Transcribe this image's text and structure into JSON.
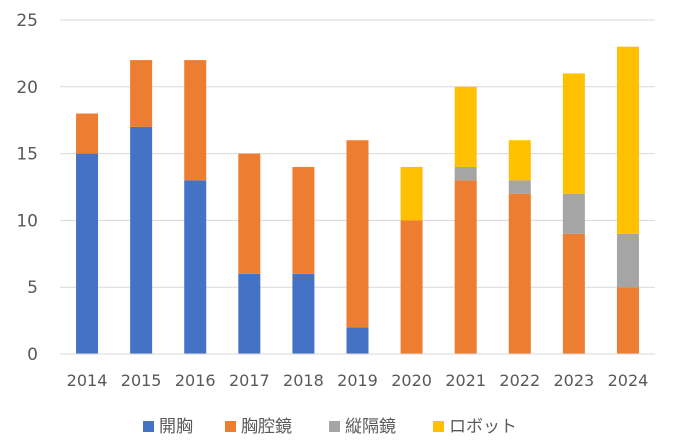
{
  "chart_data": {
    "type": "bar",
    "stacked": true,
    "categories": [
      "2014",
      "2015",
      "2016",
      "2017",
      "2018",
      "2019",
      "2020",
      "2021",
      "2022",
      "2023",
      "2024"
    ],
    "series": [
      {
        "name": "開胸",
        "color": "#4472C4",
        "values": [
          15,
          17,
          13,
          6,
          6,
          2,
          0,
          0,
          0,
          0,
          0
        ]
      },
      {
        "name": "胸腔鏡",
        "color": "#ED7D31",
        "values": [
          3,
          5,
          9,
          9,
          8,
          14,
          10,
          13,
          12,
          9,
          5
        ]
      },
      {
        "name": "縦隔鏡",
        "color": "#A5A5A5",
        "values": [
          0,
          0,
          0,
          0,
          0,
          0,
          0,
          1,
          1,
          3,
          4
        ]
      },
      {
        "name": "ロボット",
        "color": "#FFC000",
        "values": [
          0,
          0,
          0,
          0,
          0,
          0,
          4,
          6,
          3,
          9,
          14
        ]
      }
    ],
    "yticks": [
      "0",
      "5",
      "10",
      "15",
      "20",
      "25"
    ],
    "ylim": [
      0,
      25
    ],
    "grid": true,
    "legend_position": "bottom"
  }
}
